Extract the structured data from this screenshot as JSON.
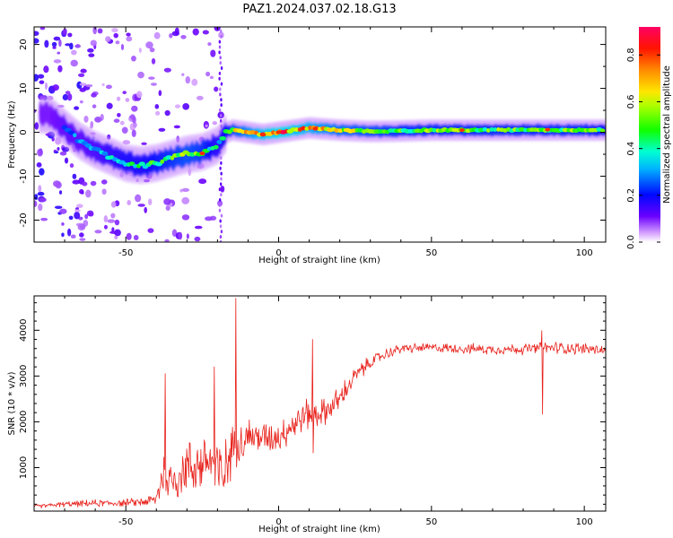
{
  "title": "PAZ1.2024.037.02.18.G13",
  "chart_data": [
    {
      "type": "heatmap",
      "xlabel": "Height of straight line (km)",
      "ylabel": "Frequency (Hz)",
      "xlim": [
        -80,
        107
      ],
      "ylim": [
        -25,
        24
      ],
      "x_ticks": [
        -50,
        0,
        50,
        100
      ],
      "y_ticks": [
        -20,
        -10,
        0,
        10,
        20
      ],
      "colorbar": {
        "label": "Normalized spectral amplitude",
        "range": [
          0.0,
          0.92
        ],
        "ticks": [
          0.0,
          0.2,
          0.4,
          0.6,
          0.8
        ],
        "colormap": "gist_rainbow_r"
      },
      "ridge": {
        "x": [
          -75,
          -70,
          -65,
          -60,
          -55,
          -50,
          -45,
          -40,
          -35,
          -30,
          -25,
          -20,
          -17,
          -15,
          -10,
          -5,
          0,
          5,
          10,
          20,
          30,
          40,
          50,
          60,
          70,
          80,
          90,
          100,
          107
        ],
        "frequency_hz": [
          4,
          1,
          -2,
          -4,
          -5.5,
          -7,
          -7.5,
          -7,
          -6,
          -5,
          -4.5,
          -3,
          0,
          0.5,
          0,
          -0.5,
          0,
          0.5,
          1,
          0.5,
          0.2,
          0.3,
          0.5,
          0.5,
          0.5,
          0.5,
          0.5,
          0.5,
          0.5
        ],
        "amplitude": [
          0.25,
          0.3,
          0.3,
          0.35,
          0.4,
          0.45,
          0.45,
          0.5,
          0.55,
          0.6,
          0.55,
          0.4,
          0.5,
          0.6,
          0.7,
          0.8,
          0.85,
          0.8,
          0.75,
          0.65,
          0.6,
          0.55,
          0.55,
          0.55,
          0.55,
          0.55,
          0.55,
          0.55,
          0.5
        ]
      }
    },
    {
      "type": "line",
      "xlabel": "Height of straight line (km)",
      "ylabel": "SNR (10 * v/v)",
      "xlim": [
        -80,
        107
      ],
      "ylim": [
        50,
        4750
      ],
      "x_ticks": [
        -50,
        0,
        50,
        100
      ],
      "y_ticks": [
        1000,
        2000,
        3000,
        4000
      ],
      "color": "#e8221c",
      "series": [
        {
          "x": [
            -80,
            -70,
            -60,
            -50,
            -45,
            -40,
            -38,
            -35,
            -30,
            -25,
            -22,
            -20,
            -18,
            -16,
            -15,
            -14,
            -12,
            -10,
            -5,
            0,
            5,
            10,
            15,
            20,
            25,
            30,
            35,
            40,
            50,
            60,
            70,
            80,
            90,
            100,
            107
          ],
          "y": [
            150,
            200,
            220,
            230,
            250,
            300,
            900,
            700,
            1000,
            1100,
            1200,
            900,
            800,
            1300,
            1400,
            1700,
            1550,
            1700,
            1650,
            1700,
            1950,
            2200,
            2200,
            2500,
            3000,
            3300,
            3480,
            3600,
            3620,
            3600,
            3580,
            3590,
            3620,
            3600,
            3560
          ],
          "noise": [
            40,
            60,
            80,
            80,
            100,
            150,
            600,
            500,
            600,
            650,
            700,
            800,
            700,
            600,
            500,
            400,
            500,
            400,
            350,
            350,
            350,
            350,
            300,
            280,
            200,
            150,
            120,
            110,
            100,
            110,
            110,
            120,
            140,
            130,
            120
          ],
          "spikes": [
            {
              "x": -37,
              "y": 3050
            },
            {
              "x": -21,
              "y": 3200
            },
            {
              "x": -14,
              "y": 4700
            },
            {
              "x": 11,
              "y": 3800
            },
            {
              "x": 86,
              "y": 3990
            }
          ]
        }
      ]
    }
  ]
}
